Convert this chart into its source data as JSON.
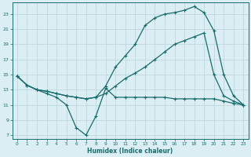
{
  "bg_color": "#daeef3",
  "grid_color": "#b8d4da",
  "line_color": "#1a6b6b",
  "xlabel": "Humidex (Indice chaleur)",
  "xlim": [
    -0.5,
    23.5
  ],
  "ylim": [
    6.5,
    24.5
  ],
  "yticks": [
    7,
    9,
    11,
    13,
    15,
    17,
    19,
    21,
    23
  ],
  "xticks": [
    0,
    1,
    2,
    3,
    4,
    5,
    6,
    7,
    8,
    9,
    10,
    11,
    12,
    13,
    14,
    15,
    16,
    17,
    18,
    19,
    20,
    21,
    22,
    23
  ],
  "series": [
    {
      "x": [
        0,
        1,
        2,
        3,
        4,
        5,
        6,
        7,
        8,
        9,
        10,
        11,
        12,
        13,
        14,
        15,
        16,
        17,
        18,
        19,
        20,
        21,
        22,
        23
      ],
      "y": [
        14.8,
        13.6,
        13.0,
        12.5,
        12.0,
        11.0,
        8.0,
        7.0,
        9.5,
        13.2,
        12.0,
        12.0,
        12.0,
        12.0,
        12.0,
        12.0,
        11.8,
        11.8,
        11.8,
        11.8,
        11.8,
        11.5,
        11.2,
        11.0
      ]
    },
    {
      "x": [
        0,
        1,
        2,
        3,
        4,
        5,
        6,
        7,
        8,
        9,
        10,
        11,
        12,
        13,
        14,
        15,
        16,
        17,
        18,
        19,
        20,
        21,
        22,
        23
      ],
      "y": [
        14.8,
        13.6,
        13.0,
        12.8,
        12.5,
        12.2,
        12.0,
        11.8,
        12.0,
        12.5,
        13.5,
        14.5,
        15.2,
        16.0,
        17.0,
        18.0,
        19.0,
        19.5,
        20.0,
        20.5,
        15.0,
        12.2,
        11.5,
        11.0
      ]
    },
    {
      "x": [
        0,
        1,
        2,
        3,
        4,
        5,
        6,
        7,
        8,
        9,
        10,
        11,
        12,
        13,
        14,
        15,
        16,
        17,
        18,
        19,
        20,
        21,
        22,
        23
      ],
      "y": [
        14.8,
        13.6,
        13.0,
        12.8,
        12.5,
        12.2,
        12.0,
        11.8,
        12.0,
        13.5,
        16.0,
        17.5,
        19.0,
        21.5,
        22.5,
        23.0,
        23.2,
        23.5,
        24.0,
        23.2,
        20.8,
        15.0,
        12.2,
        11.0
      ]
    }
  ]
}
